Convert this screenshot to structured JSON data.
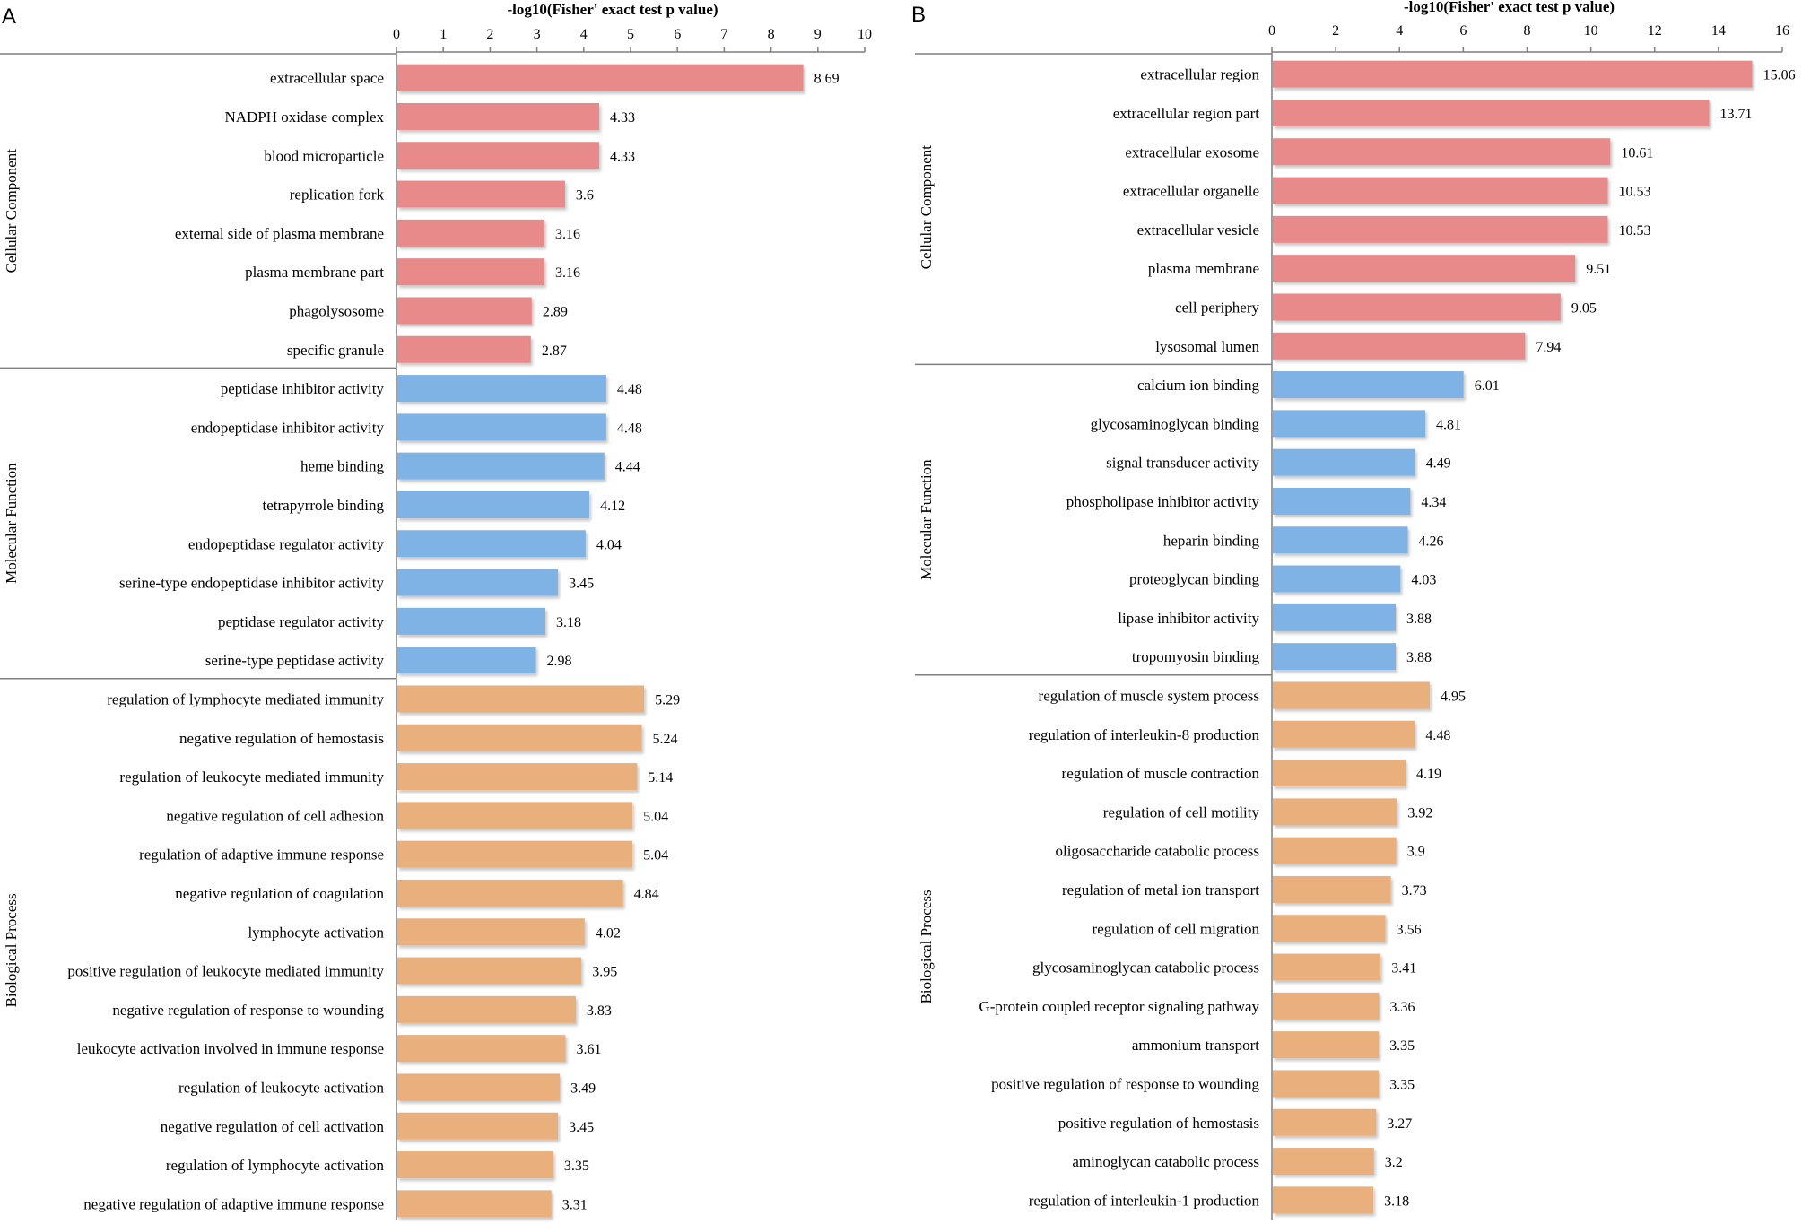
{
  "colors": {
    "cellular_component": "#E8898A",
    "molecular_function": "#7FB2E5",
    "biological_process": "#E9B07E",
    "axis": "#7F7F7F",
    "text": "#000000"
  },
  "chart_data": [
    {
      "type": "bar",
      "orientation": "horizontal",
      "panel_label": "A",
      "title": "-log10(Fisher' exact test p value)",
      "xlabel": "-log10(Fisher' exact test p value)",
      "xlim": [
        0,
        10
      ],
      "xticks": [
        0,
        1,
        2,
        3,
        4,
        5,
        6,
        7,
        8,
        9,
        10
      ],
      "groups": [
        {
          "name": "Cellular Component",
          "color_key": "cellular_component",
          "categories": [
            "extracellular space",
            "NADPH oxidase complex",
            "blood microparticle",
            "replication fork",
            "external side of plasma membrane",
            "plasma membrane part",
            "phagolysosome",
            "specific granule"
          ],
          "values": [
            8.69,
            4.33,
            4.33,
            3.6,
            3.16,
            3.16,
            2.89,
            2.87
          ]
        },
        {
          "name": "Molecular Function",
          "color_key": "molecular_function",
          "categories": [
            "peptidase inhibitor activity",
            "endopeptidase inhibitor activity",
            "heme binding",
            "tetrapyrrole binding",
            "endopeptidase regulator activity",
            "serine-type endopeptidase inhibitor activity",
            "peptidase regulator activity",
            "serine-type peptidase activity"
          ],
          "values": [
            4.48,
            4.48,
            4.44,
            4.12,
            4.04,
            3.45,
            3.18,
            2.98
          ]
        },
        {
          "name": "Biological Process",
          "color_key": "biological_process",
          "categories": [
            "regulation of lymphocyte mediated immunity",
            "negative regulation of hemostasis",
            "regulation of leukocyte mediated immunity",
            "negative regulation of cell adhesion",
            "regulation of adaptive immune response",
            "negative regulation of coagulation",
            "lymphocyte activation",
            "positive regulation of leukocyte mediated immunity",
            "negative regulation of response to wounding",
            "leukocyte activation involved in immune response",
            "regulation of leukocyte activation",
            "negative regulation of cell activation",
            "regulation of lymphocyte activation",
            "negative regulation of adaptive immune response"
          ],
          "values": [
            5.29,
            5.24,
            5.14,
            5.04,
            5.04,
            4.84,
            4.02,
            3.95,
            3.83,
            3.61,
            3.49,
            3.45,
            3.35,
            3.31
          ]
        }
      ]
    },
    {
      "type": "bar",
      "orientation": "horizontal",
      "panel_label": "B",
      "title": "-log10(Fisher' exact test p value)",
      "xlabel": "-log10(Fisher' exact test p value)",
      "xlim": [
        0,
        16
      ],
      "xticks": [
        0,
        2,
        4,
        6,
        8,
        10,
        12,
        14,
        16
      ],
      "groups": [
        {
          "name": "Cellular Component",
          "color_key": "cellular_component",
          "categories": [
            "extracellular region",
            "extracellular region part",
            "extracellular exosome",
            "extracellular organelle",
            "extracellular vesicle",
            "plasma membrane",
            "cell periphery",
            "lysosomal lumen"
          ],
          "values": [
            15.06,
            13.71,
            10.61,
            10.53,
            10.53,
            9.51,
            9.05,
            7.94
          ]
        },
        {
          "name": "Molecular Function",
          "color_key": "molecular_function",
          "categories": [
            "calcium ion binding",
            "glycosaminoglycan binding",
            "signal transducer activity",
            "phospholipase inhibitor activity",
            "heparin binding",
            "proteoglycan binding",
            "lipase inhibitor activity",
            "tropomyosin binding"
          ],
          "values": [
            6.01,
            4.81,
            4.49,
            4.34,
            4.26,
            4.03,
            3.88,
            3.88
          ]
        },
        {
          "name": "Biological Process",
          "color_key": "biological_process",
          "categories": [
            "regulation of muscle system process",
            "regulation of interleukin-8 production",
            "regulation of muscle contraction",
            "regulation of cell motility",
            "oligosaccharide catabolic process",
            "regulation of metal ion transport",
            "regulation of cell migration",
            "glycosaminoglycan catabolic process",
            "G-protein coupled receptor signaling pathway",
            "ammonium transport",
            "positive regulation of response to wounding",
            "positive regulation of hemostasis",
            "aminoglycan catabolic process",
            "regulation of interleukin-1 production"
          ],
          "values": [
            4.95,
            4.48,
            4.19,
            3.92,
            3.9,
            3.73,
            3.56,
            3.41,
            3.36,
            3.35,
            3.35,
            3.27,
            3.2,
            3.18
          ]
        }
      ]
    }
  ]
}
